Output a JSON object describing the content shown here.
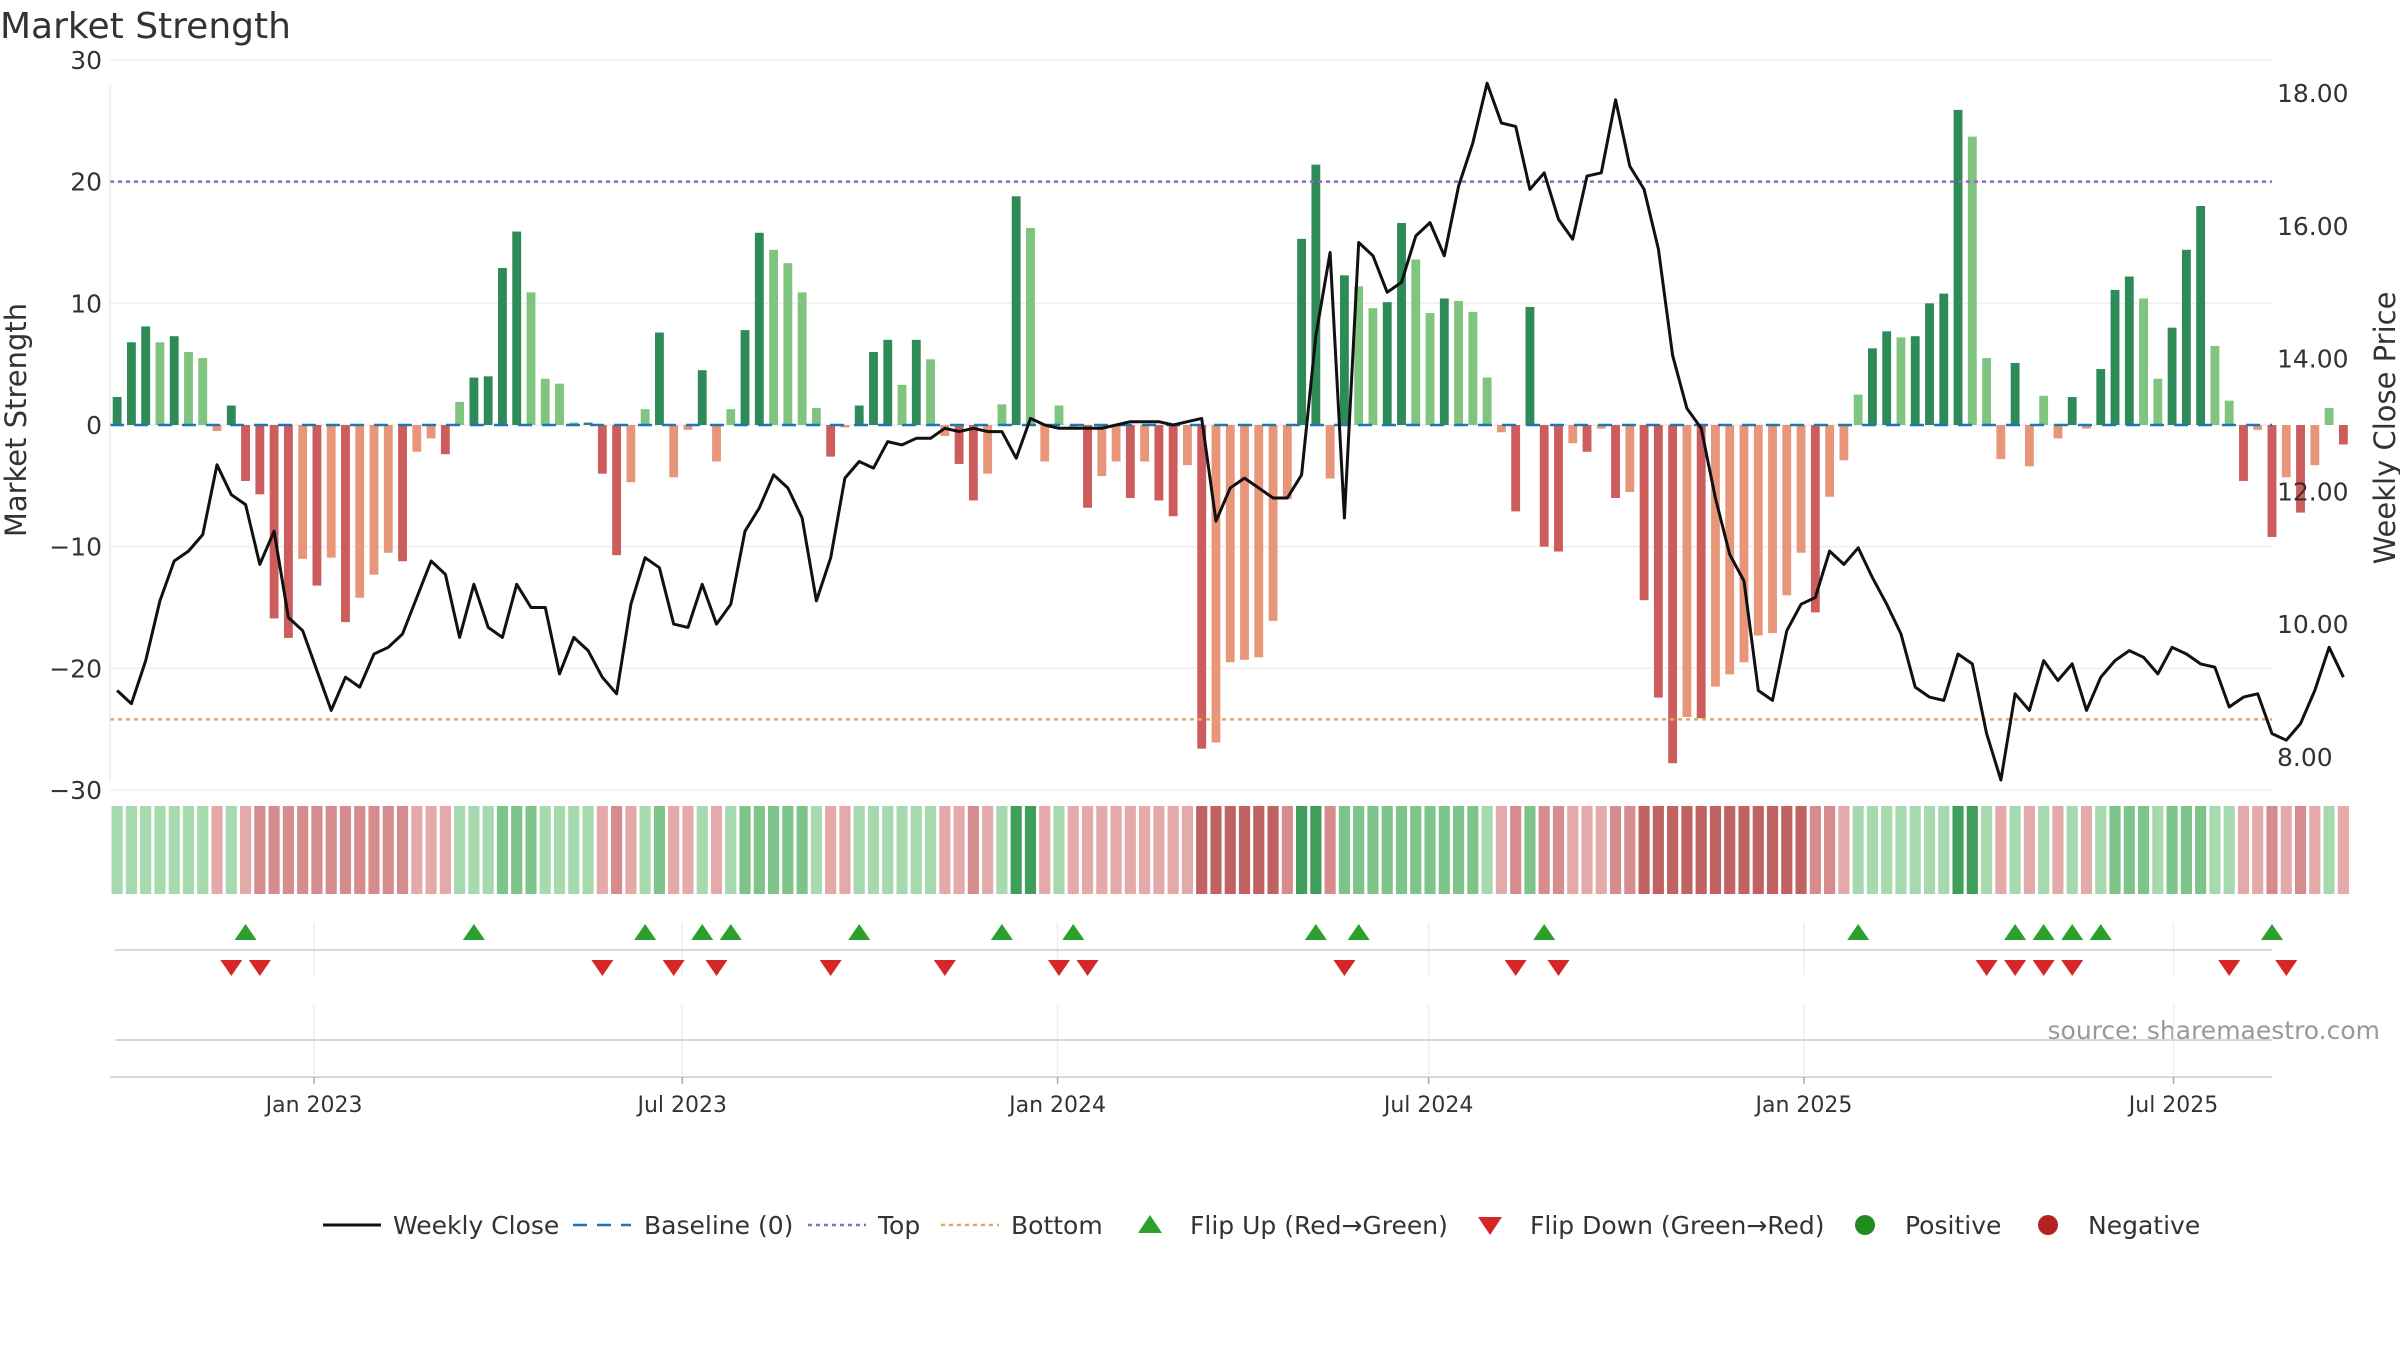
{
  "chart_data": {
    "type": "bar",
    "title": "Market Strength",
    "ylabel_left": "Market Strength",
    "ylabel_right": "Weekly Close Price",
    "ylim_left": [
      -30,
      30
    ],
    "ylim_right": [
      7.5,
      18.5
    ],
    "yticks_left": [
      30,
      20,
      10,
      0,
      -10,
      -20,
      -30
    ],
    "yticks_left_labels": [
      "30",
      "20",
      "10",
      "0",
      "−10",
      "−20",
      "−30"
    ],
    "yticks_right": [
      18,
      16,
      14,
      12,
      10,
      8
    ],
    "yticks_right_labels": [
      "18.00",
      "16.00",
      "14.00",
      "12.00",
      "10.00",
      "8.00"
    ],
    "x_start": "2022-10-31",
    "x_step_days": 7,
    "x_end_index": 151.5,
    "x_ticks": [
      {
        "label": "Jan 2023",
        "pos": 14.3
      },
      {
        "label": "Jul 2023",
        "pos": 40.1
      },
      {
        "label": "Jan 2024",
        "pos": 66.4
      },
      {
        "label": "Jul 2024",
        "pos": 92.4
      },
      {
        "label": "Jan 2025",
        "pos": 118.7
      },
      {
        "label": "Jul 2025",
        "pos": 144.6
      }
    ],
    "top_line": 20,
    "bottom_line": -24.2,
    "baseline": 0,
    "strength": [
      2.3,
      6.8,
      8.1,
      6.8,
      7.3,
      6.0,
      5.5,
      -0.5,
      1.6,
      -4.6,
      -5.7,
      -15.9,
      -17.5,
      -11.0,
      -13.2,
      -10.9,
      -16.2,
      -14.2,
      -12.3,
      -10.5,
      -11.2,
      -2.2,
      -1.1,
      -2.4,
      1.9,
      3.9,
      4.0,
      12.9,
      15.9,
      10.9,
      3.8,
      3.4,
      0.2,
      0.2,
      -4.0,
      -10.7,
      -4.7,
      1.3,
      7.6,
      -4.3,
      -0.4,
      4.5,
      -3.0,
      1.3,
      7.8,
      15.8,
      14.4,
      13.3,
      10.9,
      1.4,
      -2.6,
      -0.2,
      1.6,
      6.0,
      7.0,
      3.3,
      7.0,
      5.4,
      -0.9,
      -3.2,
      -6.2,
      -4.0,
      1.7,
      18.8,
      16.2,
      -3.0,
      1.6,
      -0.2,
      -6.8,
      -4.2,
      -3.0,
      -6.0,
      -3.0,
      -6.2,
      -7.5,
      -3.3,
      -26.6,
      -26.1,
      -19.5,
      -19.3,
      -19.1,
      -16.1,
      -6.1,
      15.3,
      21.4,
      -4.4,
      12.3,
      11.4,
      9.6,
      10.1,
      16.6,
      13.6,
      9.2,
      10.4,
      10.2,
      9.3,
      3.9,
      -0.6,
      -7.1,
      9.7,
      -10.0,
      -10.4,
      -1.5,
      -2.2,
      -0.3,
      -6.0,
      -5.5,
      -14.4,
      -22.4,
      -27.8,
      -24.0,
      -24.1,
      -21.5,
      -20.5,
      -19.5,
      -17.3,
      -17.1,
      -14.0,
      -10.5,
      -15.4,
      -5.9,
      -2.9,
      2.5,
      6.3,
      7.7,
      7.2,
      7.3,
      10.0,
      10.8,
      25.9,
      23.7,
      5.5,
      -2.8,
      5.1,
      -3.4,
      2.4,
      -1.1,
      2.3,
      -0.3,
      4.6,
      11.1,
      12.2,
      10.4,
      3.8,
      8.0,
      14.4,
      18.0,
      6.5,
      2.0,
      -4.6,
      -0.4,
      -9.2,
      -4.3,
      -7.2,
      -3.3,
      1.4,
      -1.6
    ],
    "close": [
      9.0,
      8.8,
      9.45,
      10.35,
      10.95,
      11.1,
      11.35,
      12.4,
      11.95,
      11.8,
      10.9,
      11.4,
      10.1,
      9.9,
      9.3,
      8.7,
      9.2,
      9.05,
      9.55,
      9.65,
      9.85,
      10.4,
      10.95,
      10.75,
      9.8,
      10.6,
      9.95,
      9.8,
      10.6,
      10.25,
      10.25,
      9.25,
      9.8,
      9.6,
      9.2,
      8.95,
      10.3,
      11.0,
      10.85,
      10.0,
      9.95,
      10.6,
      10.0,
      10.3,
      11.4,
      11.75,
      12.25,
      12.05,
      11.6,
      10.35,
      11.0,
      12.2,
      12.45,
      12.35,
      12.75,
      12.7,
      12.8,
      12.8,
      12.95,
      12.9,
      12.95,
      12.9,
      12.9,
      12.5,
      13.1,
      13.0,
      12.95,
      12.95,
      12.95,
      12.95,
      13.0,
      13.05,
      13.05,
      13.05,
      13.0,
      13.05,
      13.1,
      11.55,
      12.05,
      12.2,
      12.05,
      11.9,
      11.9,
      12.25,
      14.35,
      15.6,
      11.6,
      15.75,
      15.55,
      15.0,
      15.15,
      15.85,
      16.05,
      15.55,
      16.6,
      17.25,
      18.15,
      17.55,
      17.5,
      16.55,
      16.8,
      16.1,
      15.8,
      16.75,
      16.8,
      17.9,
      16.9,
      16.55,
      15.65,
      14.05,
      13.25,
      12.95,
      11.9,
      11.05,
      10.65,
      9.0,
      8.85,
      9.9,
      10.3,
      10.4,
      11.1,
      10.9,
      11.15,
      10.7,
      10.3,
      9.85,
      9.05,
      8.9,
      8.85,
      9.55,
      9.4,
      8.35,
      7.65,
      8.95,
      8.7,
      9.45,
      9.15,
      9.4,
      8.7,
      9.2,
      9.45,
      9.6,
      9.5,
      9.25,
      9.65,
      9.55,
      9.4,
      9.35,
      8.75,
      8.9,
      8.95,
      8.35,
      8.25,
      8.5,
      9.0,
      9.65,
      9.2
    ],
    "regime_levels": [
      1,
      1,
      1,
      1,
      1,
      1,
      1,
      -1,
      1,
      -1,
      -2,
      -2,
      -2,
      -2,
      -2,
      -2,
      -2,
      -2,
      -2,
      -2,
      -2,
      -1,
      -1,
      -1,
      1,
      1,
      1,
      2,
      2,
      2,
      1,
      1,
      1,
      1,
      -1,
      -2,
      -1,
      1,
      2,
      -1,
      -1,
      1,
      -1,
      1,
      2,
      2,
      2,
      2,
      2,
      1,
      -1,
      -1,
      1,
      1,
      1,
      1,
      1,
      1,
      -1,
      -1,
      -2,
      -1,
      1,
      3,
      3,
      -1,
      1,
      -1,
      -1,
      -1,
      -1,
      -1,
      -1,
      -1,
      -1,
      -1,
      -3,
      -3,
      -3,
      -3,
      -3,
      -3,
      -2,
      3,
      3,
      -2,
      2,
      2,
      2,
      2,
      2,
      2,
      2,
      2,
      2,
      2,
      1,
      -1,
      -2,
      2,
      -2,
      -2,
      -1,
      -1,
      -1,
      -2,
      -2,
      -3,
      -3,
      -3,
      -3,
      -3,
      -3,
      -3,
      -3,
      -3,
      -3,
      -3,
      -3,
      -2,
      -2,
      -1,
      1,
      1,
      1,
      1,
      1,
      1,
      1,
      3,
      3,
      1,
      -1,
      1,
      -1,
      1,
      -1,
      1,
      -1,
      1,
      2,
      2,
      2,
      1,
      2,
      2,
      2,
      1,
      1,
      -1,
      -1,
      -2,
      -1,
      -2,
      -1,
      1,
      -1
    ],
    "flip_up": [
      9,
      25,
      37,
      41,
      43,
      52,
      62,
      67,
      84,
      87,
      100,
      122,
      133,
      135,
      137,
      139,
      151
    ],
    "flip_down": [
      8,
      10,
      34,
      39,
      42,
      50,
      58,
      66,
      68,
      86,
      98,
      101,
      131,
      133,
      135,
      137,
      148,
      152
    ],
    "legend": [
      "Weekly Close",
      "Baseline (0)",
      "Top",
      "Bottom",
      "Flip Up (Red→Green)",
      "Flip Down (Green→Red)",
      "Positive",
      "Negative"
    ],
    "source": "source: sharemaestro.com"
  },
  "colors": {
    "green_strong": "#2e8b57",
    "green_light": "#7fc47f",
    "red_strong": "#cd5c5c",
    "red_light": "#e8967a",
    "top": "#9467bd",
    "bottom": "#e3a857",
    "baseline": "#1f77b4",
    "flip_up": "#2ca02c",
    "flip_down": "#d62728",
    "positive": "#228b22",
    "negative": "#b22222",
    "close": "#111111"
  }
}
